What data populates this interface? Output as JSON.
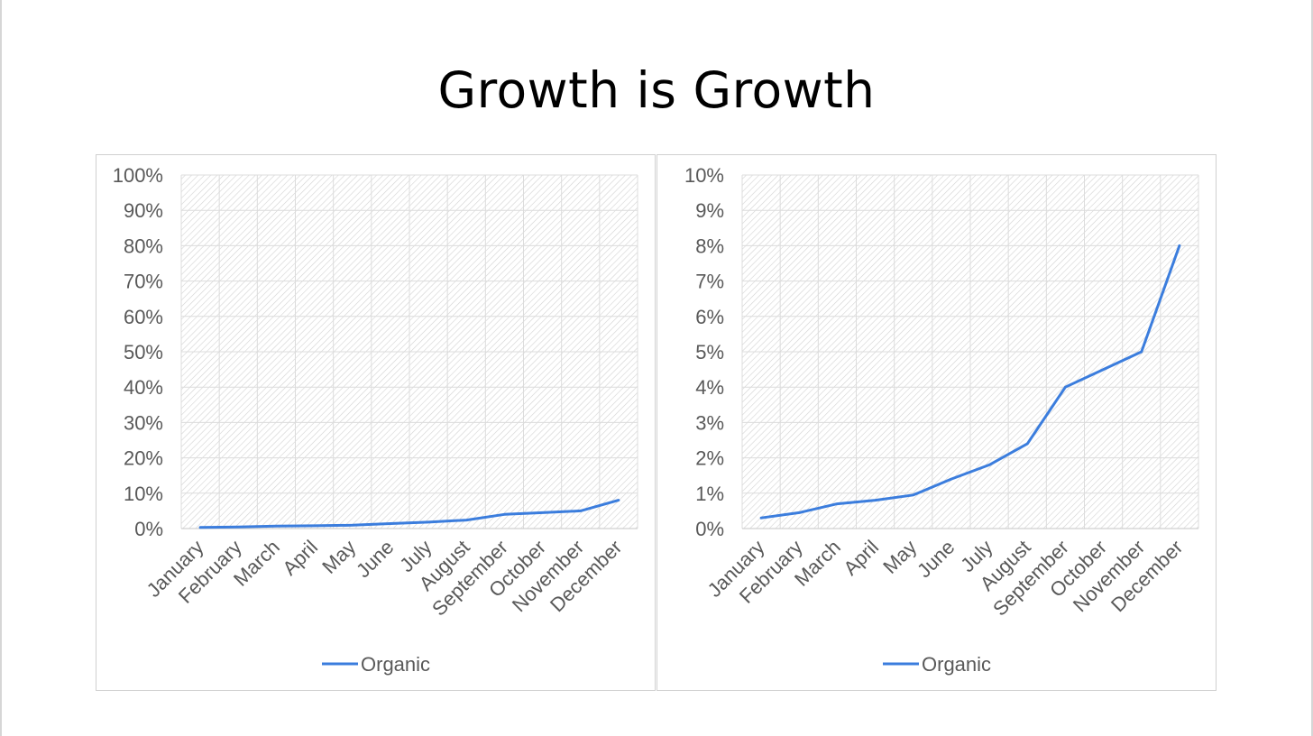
{
  "page": {
    "title": "Growth is Growth"
  },
  "chart_data": [
    {
      "type": "line",
      "title": "",
      "xlabel": "",
      "ylabel": "",
      "categories": [
        "January",
        "February",
        "March",
        "April",
        "May",
        "June",
        "July",
        "August",
        "September",
        "October",
        "November",
        "December"
      ],
      "series": [
        {
          "name": "Organic",
          "color": "#3b7ddd",
          "values": [
            0.003,
            0.0045,
            0.007,
            0.008,
            0.0095,
            0.014,
            0.018,
            0.024,
            0.04,
            0.045,
            0.05,
            0.08
          ]
        }
      ],
      "ylim": [
        0,
        1
      ],
      "ytick_step": 0.1,
      "ytick_labels": [
        "0%",
        "10%",
        "20%",
        "30%",
        "40%",
        "50%",
        "60%",
        "70%",
        "80%",
        "90%",
        "100%"
      ],
      "grid": true,
      "plot_background": "hatched",
      "legend": "bottom-center"
    },
    {
      "type": "line",
      "title": "",
      "xlabel": "",
      "ylabel": "",
      "categories": [
        "January",
        "February",
        "March",
        "April",
        "May",
        "June",
        "July",
        "August",
        "September",
        "October",
        "November",
        "December"
      ],
      "series": [
        {
          "name": "Organic",
          "color": "#3b7ddd",
          "values": [
            0.003,
            0.0045,
            0.007,
            0.008,
            0.0095,
            0.014,
            0.018,
            0.024,
            0.04,
            0.045,
            0.05,
            0.08
          ]
        }
      ],
      "ylim": [
        0,
        0.1
      ],
      "ytick_step": 0.01,
      "ytick_labels": [
        "0%",
        "1%",
        "2%",
        "3%",
        "4%",
        "5%",
        "6%",
        "7%",
        "8%",
        "9%",
        "10%"
      ],
      "grid": true,
      "plot_background": "hatched",
      "legend": "bottom-center"
    }
  ]
}
